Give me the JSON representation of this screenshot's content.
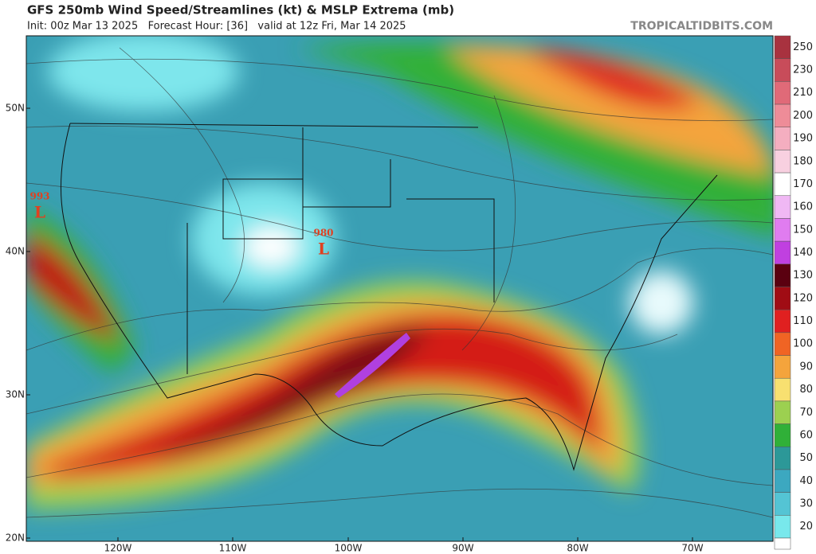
{
  "header": {
    "title": "GFS 250mb Wind Speed/Streamlines (kt) & MSLP Extrema (mb)",
    "subtitle": "Init: 00z Mar 13 2025   Forecast Hour: [36]   valid at 12z Fri, Mar 14 2025",
    "site": "TROPICALTIDBITS.COM"
  },
  "map": {
    "lat_labels": [
      "50N",
      "40N",
      "30N",
      "20N"
    ],
    "lon_labels": [
      "120W",
      "110W",
      "100W",
      "90W",
      "80W",
      "70W"
    ],
    "lows": [
      {
        "pressure": "993",
        "symbol": "L"
      },
      {
        "pressure": "980",
        "symbol": "L"
      }
    ]
  },
  "colorbar": {
    "labels": [
      "250",
      "230",
      "210",
      "200",
      "190",
      "180",
      "170",
      "160",
      "150",
      "140",
      "130",
      "120",
      "110",
      "100",
      "90",
      "80",
      "70",
      "60",
      "50",
      "40",
      "30",
      "20"
    ],
    "colors": [
      "#a8323f",
      "#c84c5a",
      "#e06a78",
      "#ee8c98",
      "#f4aec0",
      "#f8d0e0",
      "#ffffff",
      "#f0b8f4",
      "#e07cf0",
      "#c040e0",
      "#5a0010",
      "#a00c14",
      "#e02020",
      "#f06424",
      "#f4a43c",
      "#f8e070",
      "#9cd050",
      "#30b038",
      "#2c9898",
      "#3ca8c0",
      "#54c4d4",
      "#78e8ec"
    ]
  }
}
